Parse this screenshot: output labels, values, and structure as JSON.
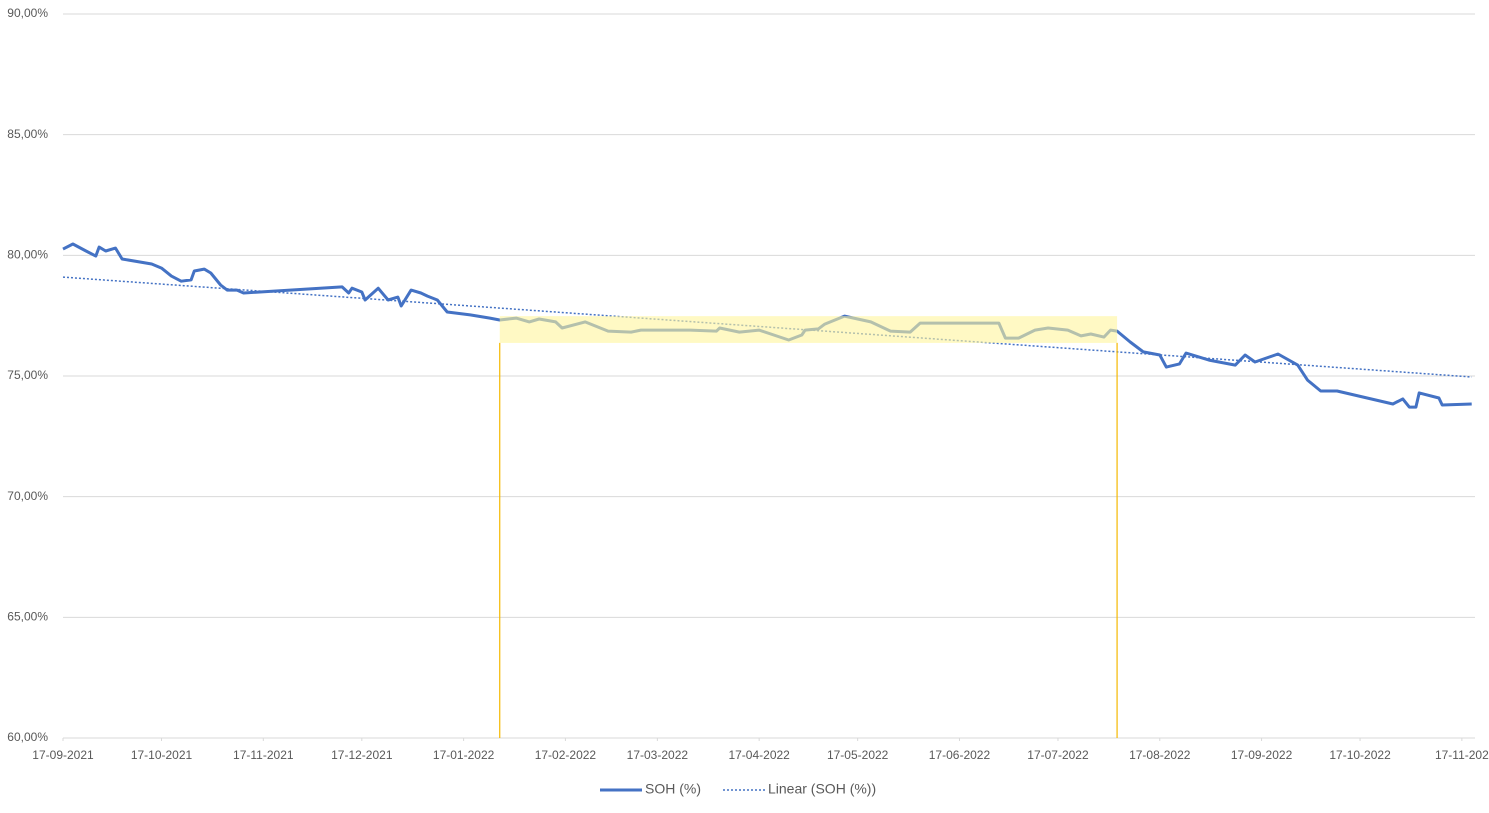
{
  "chart_data": {
    "type": "line",
    "xlim": [
      "2021-09-17",
      "2022-11-21"
    ],
    "xticks": [
      {
        "value": "2021-09-17",
        "label": "17-09-2021"
      },
      {
        "value": "2021-10-17",
        "label": "17-10-2021"
      },
      {
        "value": "2021-11-17",
        "label": "17-11-2021"
      },
      {
        "value": "2021-12-17",
        "label": "17-12-2021"
      },
      {
        "value": "2022-01-17",
        "label": "17-01-2022"
      },
      {
        "value": "2022-02-17",
        "label": "17-02-2022"
      },
      {
        "value": "2022-03-17",
        "label": "17-03-2022"
      },
      {
        "value": "2022-04-17",
        "label": "17-04-2022"
      },
      {
        "value": "2022-05-17",
        "label": "17-05-2022"
      },
      {
        "value": "2022-06-17",
        "label": "17-06-2022"
      },
      {
        "value": "2022-07-17",
        "label": "17-07-2022"
      },
      {
        "value": "2022-08-17",
        "label": "17-08-2022"
      },
      {
        "value": "2022-09-17",
        "label": "17-09-2022"
      },
      {
        "value": "2022-10-17",
        "label": "17-10-2022"
      },
      {
        "value": "2022-11-17",
        "label": "17-11-202"
      }
    ],
    "ylim": [
      60,
      90
    ],
    "yticks": [
      {
        "value": 60,
        "label": "60,00%"
      },
      {
        "value": 65,
        "label": "65,00%"
      },
      {
        "value": 70,
        "label": "70,00%"
      },
      {
        "value": 75,
        "label": "75,00%"
      },
      {
        "value": 80,
        "label": "80,00%"
      },
      {
        "value": 85,
        "label": "85,00%"
      },
      {
        "value": 90,
        "label": "90,00%"
      }
    ],
    "grid": true,
    "legend": "bottom",
    "series": [
      {
        "name": "SOH (%)",
        "color": "#4472c4",
        "style": "solid",
        "x": [
          "2021-09-17",
          "2021-09-20",
          "2021-09-24",
          "2021-09-27",
          "2021-09-28",
          "2021-09-30",
          "2021-10-03",
          "2021-10-05",
          "2021-10-14",
          "2021-10-17",
          "2021-10-20",
          "2021-10-23",
          "2021-10-26",
          "2021-10-27",
          "2021-10-30",
          "2021-11-01",
          "2021-11-04",
          "2021-11-06",
          "2021-11-09",
          "2021-11-11",
          "2021-12-11",
          "2021-12-13",
          "2021-12-14",
          "2021-12-17",
          "2021-12-18",
          "2021-12-22",
          "2021-12-25",
          "2021-12-28",
          "2021-12-29",
          "2022-01-01",
          "2022-01-04",
          "2022-01-06",
          "2022-01-09",
          "2022-01-12",
          "2022-01-19",
          "2022-01-25",
          "2022-01-28",
          "2022-02-02",
          "2022-02-06",
          "2022-02-09",
          "2022-02-14",
          "2022-02-16",
          "2022-02-23",
          "2022-03-02",
          "2022-03-09",
          "2022-03-12",
          "2022-03-18",
          "2022-03-27",
          "2022-04-04",
          "2022-04-05",
          "2022-04-11",
          "2022-04-17",
          "2022-04-26",
          "2022-04-30",
          "2022-05-01",
          "2022-05-05",
          "2022-05-07",
          "2022-05-13",
          "2022-05-21",
          "2022-05-27",
          "2022-06-02",
          "2022-06-05",
          "2022-06-29",
          "2022-07-01",
          "2022-07-05",
          "2022-07-10",
          "2022-07-14",
          "2022-07-20",
          "2022-07-24",
          "2022-07-27",
          "2022-07-31",
          "2022-08-02",
          "2022-08-04",
          "2022-08-08",
          "2022-08-12",
          "2022-08-17",
          "2022-08-19",
          "2022-08-23",
          "2022-08-25",
          "2022-09-01",
          "2022-09-09",
          "2022-09-12",
          "2022-09-15",
          "2022-09-22",
          "2022-09-28",
          "2022-10-01",
          "2022-10-05",
          "2022-10-10",
          "2022-10-27",
          "2022-10-30",
          "2022-11-01",
          "2022-11-03",
          "2022-11-04",
          "2022-11-10",
          "2022-11-11",
          "2022-11-20"
        ],
        "values": [
          80.26,
          80.47,
          80.18,
          79.97,
          80.34,
          80.18,
          80.3,
          79.85,
          79.64,
          79.47,
          79.14,
          78.93,
          78.98,
          79.35,
          79.43,
          79.27,
          78.77,
          78.56,
          78.56,
          78.44,
          78.69,
          78.44,
          78.64,
          78.48,
          78.15,
          78.64,
          78.15,
          78.27,
          77.9,
          78.56,
          78.44,
          78.31,
          78.15,
          77.65,
          77.53,
          77.4,
          77.32,
          77.4,
          77.24,
          77.36,
          77.24,
          76.99,
          77.24,
          76.86,
          76.82,
          76.9,
          76.9,
          76.9,
          76.86,
          76.99,
          76.82,
          76.9,
          76.49,
          76.7,
          76.9,
          76.95,
          77.15,
          77.48,
          77.24,
          76.86,
          76.82,
          77.19,
          77.19,
          76.57,
          76.57,
          76.9,
          76.99,
          76.9,
          76.66,
          76.74,
          76.61,
          76.9,
          76.86,
          76.41,
          76.0,
          75.87,
          75.37,
          75.5,
          75.95,
          75.66,
          75.45,
          75.87,
          75.58,
          75.91,
          75.45,
          74.83,
          74.38,
          74.38,
          73.84,
          74.05,
          73.71,
          73.71,
          74.3,
          74.09,
          73.8,
          73.84
        ]
      },
      {
        "name": "Linear (SOH (%))",
        "color": "#4472c4",
        "style": "dotted",
        "x": [
          "2021-09-17",
          "2022-11-20"
        ],
        "values": [
          79.1,
          74.96
        ]
      }
    ],
    "highlight": {
      "x": [
        "2022-01-28",
        "2022-08-04"
      ],
      "y": [
        76.37,
        77.48
      ],
      "color": "#fff59d",
      "edge_color": "#f5b800"
    }
  }
}
